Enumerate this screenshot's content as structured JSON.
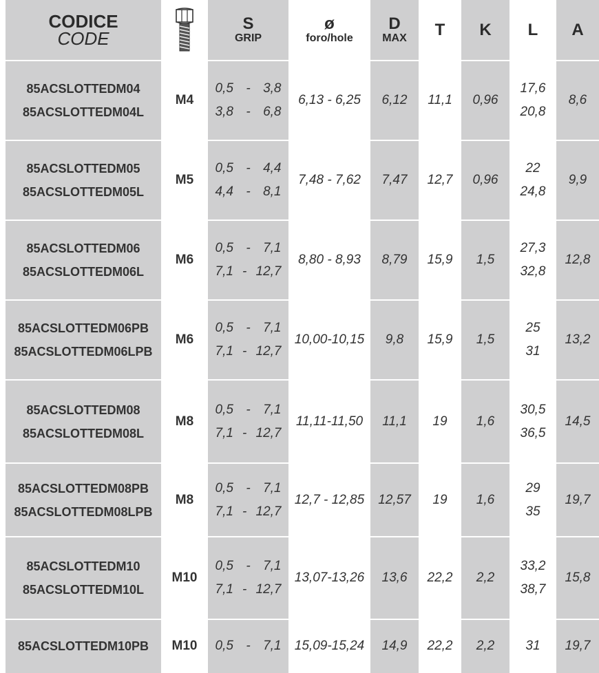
{
  "header": {
    "code": {
      "main": "CODICE",
      "sub": "CODE"
    },
    "bolt_icon": "hex-bolt-icon",
    "s": {
      "main": "S",
      "sub": "GRIP"
    },
    "hole": {
      "main": "ø",
      "sub": "foro/hole"
    },
    "d": {
      "main": "D",
      "sub": "MAX"
    },
    "t": "T",
    "k": "K",
    "l": "L",
    "a": "A"
  },
  "rows": [
    {
      "codes": [
        "85ACSLOTTEDM04",
        "85ACSLOTTEDM04L"
      ],
      "size": "M4",
      "grip": [
        [
          "0,5",
          "-",
          "3,8"
        ],
        [
          "3,8",
          "-",
          "6,8"
        ]
      ],
      "hole": "6,13 - 6,25",
      "d": "6,12",
      "t": "11,1",
      "k": "0,96",
      "l": [
        "17,6",
        "20,8"
      ],
      "a": "8,6"
    },
    {
      "codes": [
        "85ACSLOTTEDM05",
        "85ACSLOTTEDM05L"
      ],
      "size": "M5",
      "grip": [
        [
          "0,5",
          "-",
          "4,4"
        ],
        [
          "4,4",
          "-",
          "8,1"
        ]
      ],
      "hole": "7,48 - 7,62",
      "d": "7,47",
      "t": "12,7",
      "k": "0,96",
      "l": [
        "22",
        "24,8"
      ],
      "a": "9,9"
    },
    {
      "codes": [
        "85ACSLOTTEDM06",
        "85ACSLOTTEDM06L"
      ],
      "size": "M6",
      "grip": [
        [
          "0,5",
          "-",
          "7,1"
        ],
        [
          "7,1",
          "-",
          "12,7"
        ]
      ],
      "hole": "8,80 - 8,93",
      "d": "8,79",
      "t": "15,9",
      "k": "1,5",
      "l": [
        "27,3",
        "32,8"
      ],
      "a": "12,8"
    },
    {
      "codes": [
        "85ACSLOTTEDM06PB",
        "85ACSLOTTEDM06LPB"
      ],
      "size": "M6",
      "grip": [
        [
          "0,5",
          "-",
          "7,1"
        ],
        [
          "7,1",
          "-",
          "12,7"
        ]
      ],
      "hole": "10,00-10,15",
      "d": "9,8",
      "t": "15,9",
      "k": "1,5",
      "l": [
        "25",
        "31"
      ],
      "a": "13,2"
    },
    {
      "codes": [
        "85ACSLOTTEDM08",
        "85ACSLOTTEDM08L"
      ],
      "size": "M8",
      "grip": [
        [
          "0,5",
          "-",
          "7,1"
        ],
        [
          "7,1",
          "-",
          "12,7"
        ]
      ],
      "hole": "11,11-11,50",
      "d": "11,1",
      "t": "19",
      "k": "1,6",
      "l": [
        "30,5",
        "36,5"
      ],
      "a": "14,5"
    },
    {
      "codes": [
        "85ACSLOTTEDM08PB",
        "85ACSLOTTEDM08LPB"
      ],
      "size": "M8",
      "grip": [
        [
          "0,5",
          "-",
          "7,1"
        ],
        [
          "7,1",
          "-",
          "12,7"
        ]
      ],
      "hole": "12,7 - 12,85",
      "d": "12,57",
      "t": "19",
      "k": "1,6",
      "l": [
        "29",
        "35"
      ],
      "a": "19,7"
    },
    {
      "codes": [
        "85ACSLOTTEDM10",
        "85ACSLOTTEDM10L"
      ],
      "size": "M10",
      "grip": [
        [
          "0,5",
          "-",
          "7,1"
        ],
        [
          "7,1",
          "-",
          "12,7"
        ]
      ],
      "hole": "13,07-13,26",
      "d": "13,6",
      "t": "22,2",
      "k": "2,2",
      "l": [
        "33,2",
        "38,7"
      ],
      "a": "15,8"
    },
    {
      "codes": [
        "85ACSLOTTEDM10PB"
      ],
      "size": "M10",
      "grip": [
        [
          "0,5",
          "-",
          "7,1"
        ]
      ],
      "hole": "15,09-15,24",
      "d": "14,9",
      "t": "22,2",
      "k": "2,2",
      "l": [
        "31"
      ],
      "a": "19,7"
    }
  ]
}
